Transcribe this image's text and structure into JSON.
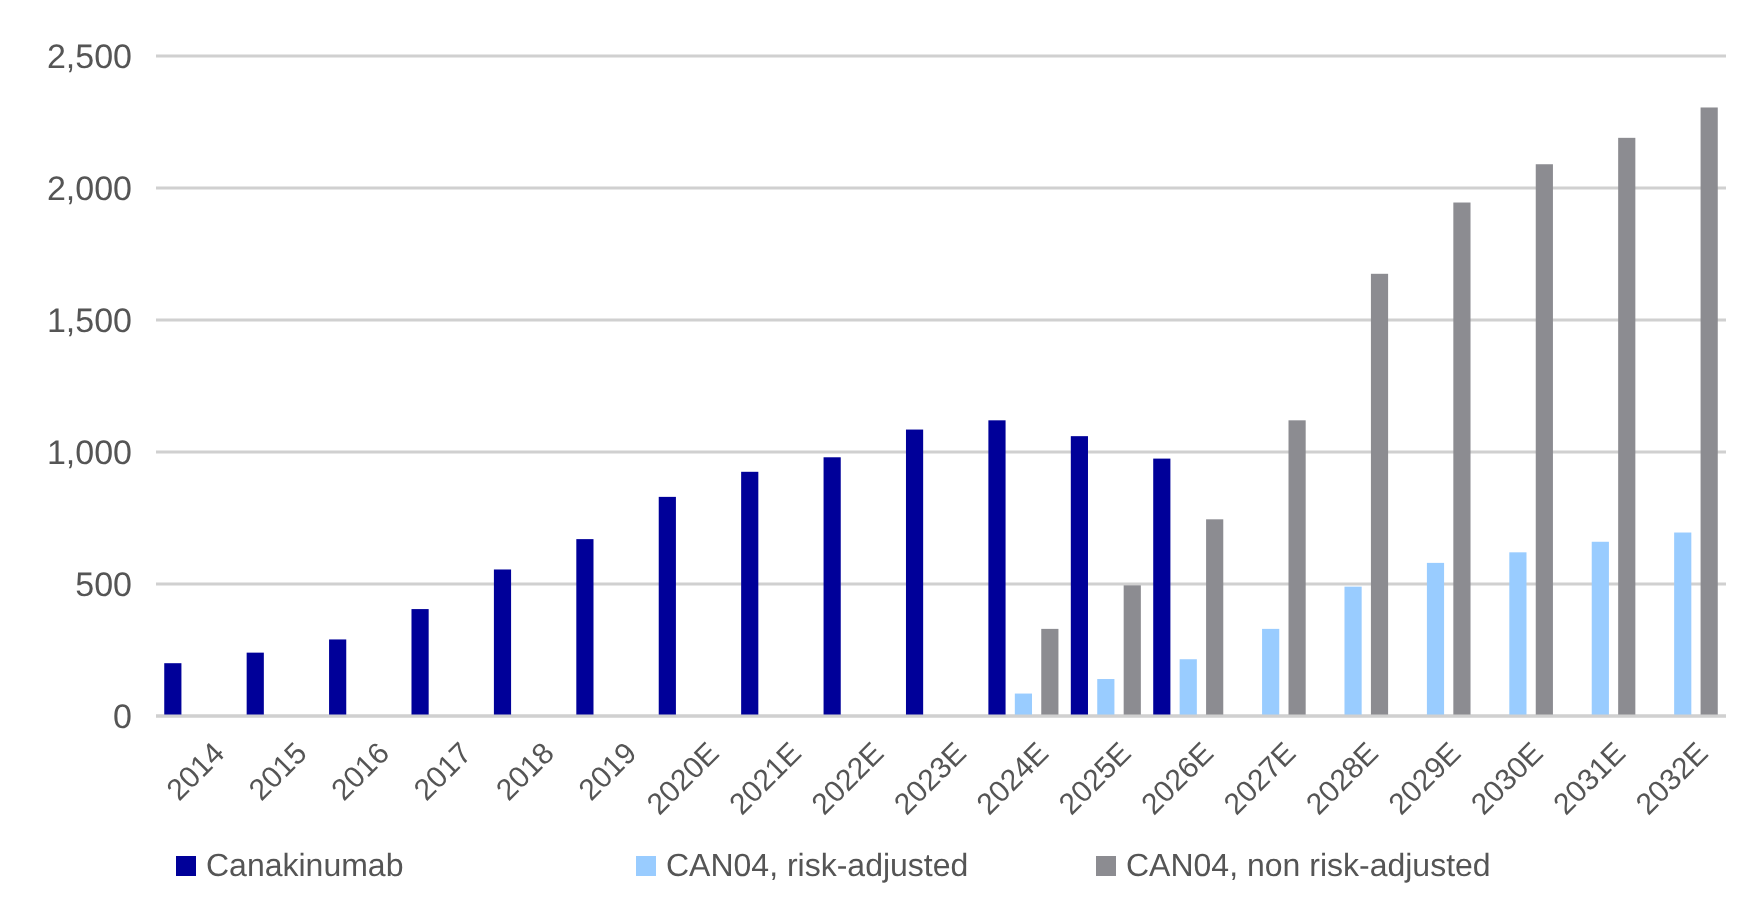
{
  "chart_data": {
    "type": "bar",
    "categories": [
      "2014",
      "2015",
      "2016",
      "2017",
      "2018",
      "2019",
      "2020E",
      "2021E",
      "2022E",
      "2023E",
      "2024E",
      "2025E",
      "2026E",
      "2027E",
      "2028E",
      "2029E",
      "2030E",
      "2031E",
      "2032E"
    ],
    "series": [
      {
        "name": "Canakinumab",
        "color": "#000099",
        "values": [
          200,
          240,
          290,
          405,
          555,
          670,
          830,
          925,
          980,
          1085,
          1120,
          1060,
          975,
          null,
          null,
          null,
          null,
          null,
          null
        ]
      },
      {
        "name": "CAN04, risk-adjusted",
        "color": "#99ccff",
        "values": [
          null,
          null,
          null,
          null,
          null,
          null,
          null,
          null,
          null,
          null,
          85,
          140,
          215,
          330,
          490,
          580,
          620,
          660,
          695
        ]
      },
      {
        "name": "CAN04, non risk-adjusted",
        "color": "#8c8c91",
        "values": [
          null,
          null,
          null,
          null,
          null,
          null,
          null,
          null,
          null,
          null,
          330,
          495,
          745,
          1120,
          1675,
          1945,
          2090,
          2190,
          2305
        ]
      }
    ],
    "ylim": [
      0,
      2500
    ],
    "yticks": [
      0,
      {
        "value": 500,
        "label": "500"
      },
      {
        "value": 1000,
        "label": "1,000"
      },
      {
        "value": 1500,
        "label": "1,500"
      },
      {
        "value": 2000,
        "label": "2,000"
      },
      {
        "value": 2500,
        "label": "2,500"
      }
    ],
    "grid": "y",
    "legend": "bottom"
  }
}
